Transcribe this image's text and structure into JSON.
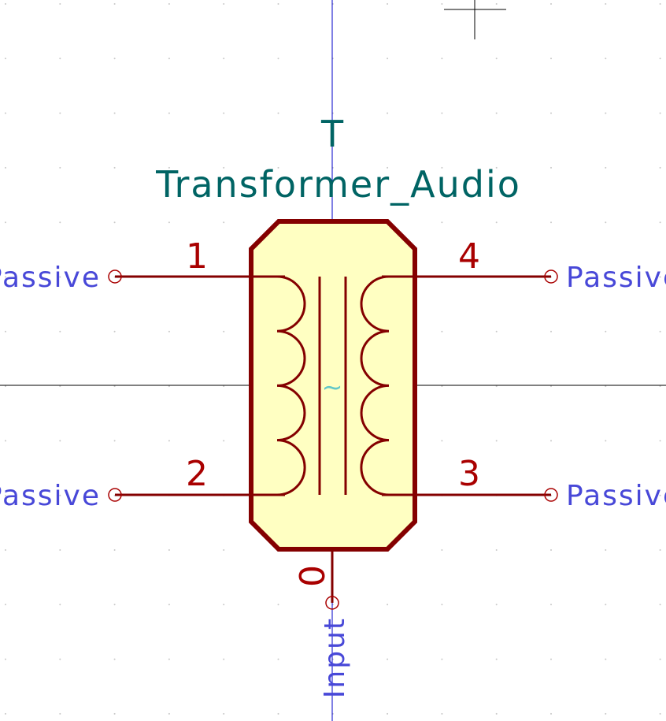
{
  "symbol": {
    "reference": "T",
    "value": "Transformer_Audio",
    "center_glyph": "~"
  },
  "pins": [
    {
      "number": "1",
      "type": "Passive"
    },
    {
      "number": "4",
      "type": "Passive"
    },
    {
      "number": "2",
      "type": "Passive"
    },
    {
      "number": "3",
      "type": "Passive"
    },
    {
      "number": "0",
      "type": "Input"
    }
  ],
  "colors": {
    "body_fill": "#ffffc2",
    "body_stroke": "#840000",
    "pin_number": "#a90000",
    "pin_type": "#4848d8",
    "field_text": "#006464",
    "axis": "#0000c8",
    "center_glyph": "#64c8c8"
  }
}
